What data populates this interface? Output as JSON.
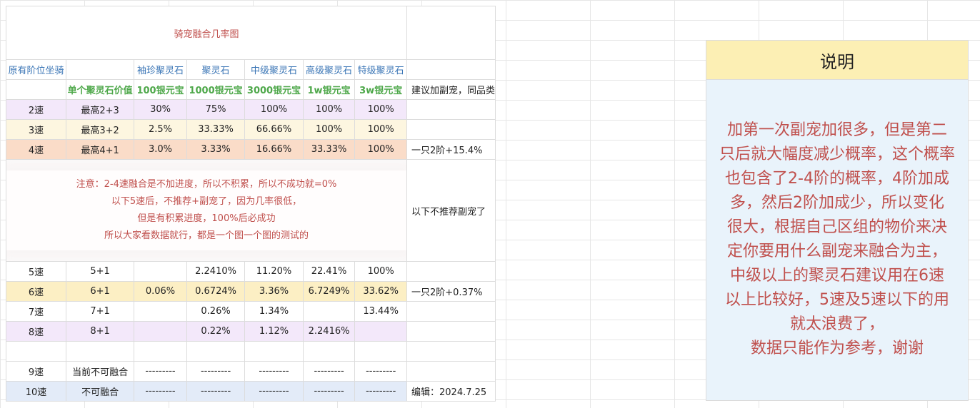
{
  "title": "骑宠融合几率图",
  "header": {
    "col_mount": "原有阶位坐骑",
    "stones": [
      "袖珍聚灵石",
      "聚灵石",
      "中级聚灵石",
      "高级聚灵石",
      "特级聚灵石"
    ]
  },
  "prices": {
    "label": "单个聚灵石价值",
    "values": [
      "100银元宝",
      "1000银元宝",
      "3000银元宝",
      "1w银元宝",
      "3w银元宝"
    ],
    "note": "建议加副宠，同品类"
  },
  "rows_top": [
    {
      "speed": "2速",
      "max": "最高2+3",
      "vals": [
        "30%",
        "75%",
        "100%",
        "100%",
        "100%"
      ],
      "note": ""
    },
    {
      "speed": "3速",
      "max": "最高3+2",
      "vals": [
        "2.5%",
        "33.33%",
        "66.66%",
        "100%",
        "100%"
      ],
      "note": ""
    },
    {
      "speed": "4速",
      "max": "最高4+1",
      "vals": [
        "3.0%",
        "3.33%",
        "16.66%",
        "33.33%",
        "100%"
      ],
      "note": "一只2阶+15.4%"
    }
  ],
  "notice": {
    "lines": [
      "注意：2-4速融合是不加进度，所以不积累，所以不成功就=0%",
      "以下5速后，不推荐+副宠了，因为几率很低，",
      "但是有积累进度，100%后必成功",
      "所以大家看数据就行，都是一个图一个图的测试的"
    ],
    "side_note": "以下不推荐副宠了"
  },
  "rows_bottom": [
    {
      "speed": "5速",
      "max": "5+1",
      "vals": [
        "",
        "2.2410%",
        "11.20%",
        "22.41%",
        "100%"
      ],
      "note": ""
    },
    {
      "speed": "6速",
      "max": "6+1",
      "vals": [
        "0.06%",
        "0.6724%",
        "3.36%",
        "6.7249%",
        "33.62%"
      ],
      "note": "一只2阶+0.37%"
    },
    {
      "speed": "7速",
      "max": "7+1",
      "vals": [
        "",
        "0.26%",
        "1.34%",
        "",
        "13.44%"
      ],
      "note": ""
    },
    {
      "speed": "8速",
      "max": "8+1",
      "vals": [
        "",
        "0.22%",
        "1.12%",
        "2.2416%",
        ""
      ],
      "note": ""
    }
  ],
  "rows_end": [
    {
      "speed": "9速",
      "max": "当前不可融合",
      "vals": [
        "---------",
        "---------",
        "---------",
        "---------",
        "---------"
      ],
      "note": ""
    },
    {
      "speed": "10速",
      "max": "不可融合",
      "vals": [
        "---------",
        "---------",
        "---------",
        "---------",
        "---------"
      ],
      "note": "编辑：2024.7.25"
    }
  ],
  "explain": {
    "heading": "说明",
    "lines": [
      "加第一次副宠加很多，但是第二",
      "只后就大幅度减少概率，这个概率",
      "也包含了2-4阶的概率，4阶加成",
      "多，然后2阶加成少，所以变化",
      "很大，根据自己区组的物价来决",
      "定你要用什么副宠来融合为主，",
      "中级以上的聚灵石建议用在6速",
      "以上比较好，5速及5速以下的用",
      "就太浪费了，",
      "数据只能作为参考，谢谢"
    ]
  }
}
